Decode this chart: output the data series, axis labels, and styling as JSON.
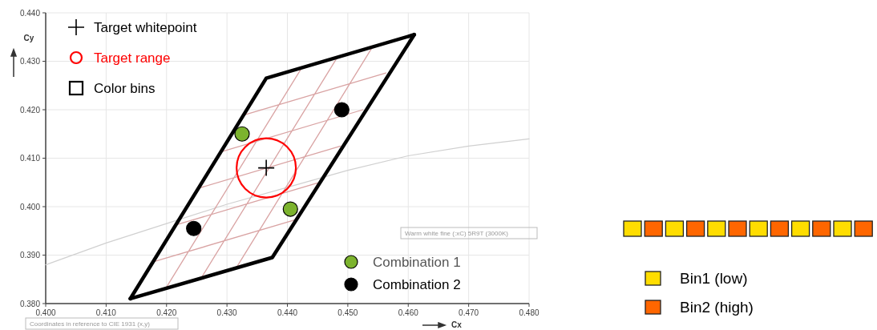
{
  "chart_data": [
    {
      "type": "scatter",
      "xlabel": "Cx",
      "ylabel": "Cy",
      "xlim": [
        0.4,
        0.48
      ],
      "ylim": [
        0.38,
        0.44
      ],
      "xticks": [
        {
          "value": 0.4,
          "label": "0.400"
        },
        {
          "value": 0.41,
          "label": "0.410"
        },
        {
          "value": 0.42,
          "label": "0.420"
        },
        {
          "value": 0.43,
          "label": "0.430"
        },
        {
          "value": 0.44,
          "label": "0.440"
        },
        {
          "value": 0.45,
          "label": "0.450"
        },
        {
          "value": 0.46,
          "label": "0.460"
        },
        {
          "value": 0.47,
          "label": "0.470"
        },
        {
          "value": 0.48,
          "label": "0.480"
        }
      ],
      "yticks": [
        {
          "value": 0.38,
          "label": "0.380"
        },
        {
          "value": 0.39,
          "label": "0.390"
        },
        {
          "value": 0.4,
          "label": "0.400"
        },
        {
          "value": 0.41,
          "label": "0.410"
        },
        {
          "value": 0.42,
          "label": "0.420"
        },
        {
          "value": 0.43,
          "label": "0.430"
        },
        {
          "value": 0.44,
          "label": "0.440"
        }
      ],
      "grid": true,
      "legend": "top left",
      "annotations": [
        "Warm white fine (:xC) 5R9T (3000K)",
        "Coordinates in reference to CIE 1931 (x,y)"
      ],
      "series": [
        {
          "type": "line",
          "color": "#d0d0d0",
          "x": [
            0.4,
            0.41,
            0.42,
            0.43,
            0.44,
            0.45,
            0.46,
            0.47,
            0.48
          ],
          "values": [
            0.388,
            0.3925,
            0.3965,
            0.4005,
            0.404,
            0.4075,
            0.4105,
            0.4125,
            0.414
          ]
        },
        {
          "type": "line",
          "color": "#d9a3a3",
          "x": [
            0.4199,
            0.4424,
            null,
            0.4258,
            0.4483,
            null,
            0.4316,
            0.4541,
            null,
            0.4178,
            0.4413,
            null,
            0.4215,
            0.445,
            null,
            0.4253,
            0.4488,
            null,
            0.429,
            0.4525,
            null,
            0.4328,
            0.4563
          ],
          "values": [
            0.3832,
            0.4287,
            null,
            0.3854,
            0.4309,
            null,
            0.3875,
            0.433,
            null,
            0.3886,
            0.3973,
            null,
            0.3962,
            0.4049,
            null,
            0.4038,
            0.4125,
            null,
            0.4113,
            0.42,
            null,
            0.4189,
            0.4276
          ]
        },
        {
          "type": "scatter",
          "name": "Target whitepoint",
          "color": "#000000",
          "marker": "cross",
          "x": [
            0.4365
          ],
          "values": [
            0.408
          ]
        },
        {
          "type": "scatter",
          "name": "Target range",
          "color": "#ff0000",
          "marker": "circle",
          "x": [
            0.4365
          ],
          "values": [
            0.408
          ]
        },
        {
          "type": "line",
          "name": "Color bins",
          "color": "#000000",
          "marker": "none",
          "x": [
            0.414,
            0.4365,
            0.461
          ],
          "values": [
            0.381,
            0.4265,
            0.4355
          ]
        },
        {
          "type": "line",
          "color": "#000000",
          "x": [
            0.414,
            0.4375,
            0.461
          ],
          "values": [
            0.381,
            0.3895,
            0.4355
          ]
        },
        {
          "type": "scatter",
          "name": "Combination 1",
          "color": "#7cb32e",
          "marker": "circle",
          "x": [
            0.4325,
            0.4405
          ],
          "values": [
            0.415,
            0.3995
          ]
        },
        {
          "type": "scatter",
          "name": "Combination 2",
          "color": "#000000",
          "marker": "circle",
          "x": [
            0.449,
            0.4245
          ],
          "values": [
            0.42,
            0.3955
          ]
        }
      ]
    },
    {
      "type": "other",
      "annotations": [
        "Bin1 (low)",
        "Bin2 (high)"
      ]
    }
  ]
}
